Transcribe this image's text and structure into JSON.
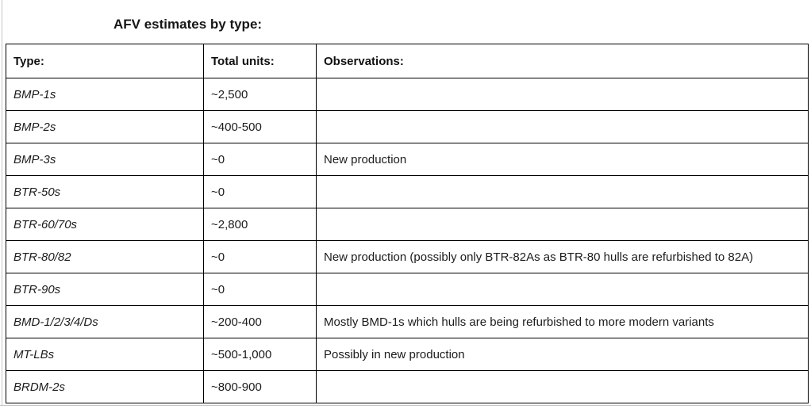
{
  "page": {
    "title": "AFV estimates by type:"
  },
  "table": {
    "columns": [
      {
        "label": "Type:"
      },
      {
        "label": "Total units:"
      },
      {
        "label": "Observations:"
      }
    ],
    "rows": [
      {
        "type": "BMP-1s",
        "total_units": "~2,500",
        "observations": ""
      },
      {
        "type": "BMP-2s",
        "total_units": "~400-500",
        "observations": ""
      },
      {
        "type": "BMP-3s",
        "total_units": "~0",
        "observations": "New production"
      },
      {
        "type": "BTR-50s",
        "total_units": "~0",
        "observations": ""
      },
      {
        "type": "BTR-60/70s",
        "total_units": "~2,800",
        "observations": ""
      },
      {
        "type": "BTR-80/82",
        "total_units": "~0",
        "observations": "New production (possibly only BTR-82As as BTR-80 hulls are refurbished to 82A)"
      },
      {
        "type": "BTR-90s",
        "total_units": "~0",
        "observations": ""
      },
      {
        "type": "BMD-1/2/3/4/Ds",
        "total_units": "~200-400",
        "observations": "Mostly BMD-1s which hulls are being refurbished to more modern variants"
      },
      {
        "type": "MT-LBs",
        "total_units": "~500-1,000",
        "observations": "Possibly in new production"
      },
      {
        "type": "BRDM-2s",
        "total_units": "~800-900",
        "observations": ""
      }
    ]
  }
}
